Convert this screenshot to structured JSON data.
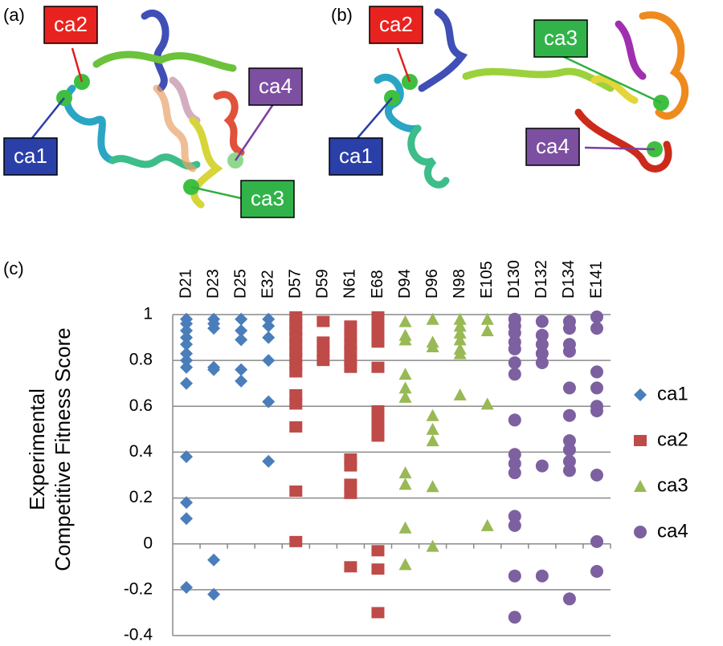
{
  "structures": [
    {
      "label": "(a)",
      "sites": [
        "ca2",
        "ca4",
        "ca1",
        "ca3"
      ]
    },
    {
      "label": "(b)",
      "sites": [
        "ca2",
        "ca3",
        "ca1",
        "ca4"
      ]
    }
  ],
  "chart_data": {
    "type": "strip",
    "label": "(c)",
    "y_label": [
      "Experimental",
      "Competitive Fitness Score"
    ],
    "categories": [
      "D21",
      "D23",
      "D25",
      "E32",
      "D57",
      "D59",
      "N61",
      "E68",
      "D94",
      "D96",
      "N98",
      "E105",
      "D130",
      "D132",
      "D134",
      "E141"
    ],
    "ylim": [
      -0.4,
      1
    ],
    "yticks": [
      -0.4,
      -0.2,
      0,
      0.2,
      0.4,
      0.6,
      0.8,
      1
    ],
    "grid": true,
    "legend": "right",
    "series": [
      {
        "name": "ca1",
        "color": "#4a7ebb",
        "marker": "diamond",
        "values": [
          [
            0.98,
            0.96,
            0.93,
            0.9,
            0.87,
            0.83,
            0.8,
            0.77,
            0.7,
            0.38,
            0.18,
            0.11,
            -0.19
          ],
          [
            0.98,
            0.96,
            0.94,
            0.77,
            0.76,
            -0.07,
            -0.22
          ],
          [
            0.98,
            0.93,
            0.89,
            0.76,
            0.71
          ],
          [
            0.98,
            0.95,
            0.9,
            0.8,
            0.62,
            0.36
          ],
          null,
          null,
          null,
          null,
          null,
          null,
          null,
          null,
          null,
          null,
          null,
          null
        ]
      },
      {
        "name": "ca2",
        "color": "#be4b48",
        "marker": "square",
        "values": [
          null,
          null,
          null,
          null,
          [
            0.99,
            0.96,
            0.93,
            0.9,
            0.87,
            0.84,
            0.81,
            0.78,
            0.75,
            0.65,
            0.61,
            0.51,
            0.23,
            0.01
          ],
          [
            0.97,
            0.88,
            0.84,
            0.8
          ],
          [
            0.95,
            0.91,
            0.87,
            0.84,
            0.8,
            0.77,
            0.37,
            0.34,
            0.26,
            0.22,
            -0.1
          ],
          [
            0.99,
            0.95,
            0.91,
            0.88,
            0.77,
            0.58,
            0.54,
            0.5,
            0.47,
            -0.03,
            -0.11,
            -0.3
          ],
          null,
          null,
          null,
          null,
          null,
          null,
          null,
          null
        ]
      },
      {
        "name": "ca3",
        "color": "#98b954",
        "marker": "triangle",
        "values": [
          null,
          null,
          null,
          null,
          null,
          null,
          null,
          null,
          [
            0.97,
            0.91,
            0.89,
            0.74,
            0.68,
            0.64,
            0.31,
            0.26,
            0.07,
            -0.09
          ],
          [
            0.98,
            0.88,
            0.86,
            0.56,
            0.5,
            0.45,
            0.25,
            -0.01
          ],
          [
            0.98,
            0.95,
            0.92,
            0.89,
            0.85,
            0.83,
            0.65
          ],
          [
            0.98,
            0.93,
            0.61,
            0.08
          ],
          null,
          null,
          null,
          null
        ]
      },
      {
        "name": "ca4",
        "color": "#7d60a0",
        "marker": "circle",
        "values": [
          null,
          null,
          null,
          null,
          null,
          null,
          null,
          null,
          null,
          null,
          null,
          null,
          [
            0.98,
            0.95,
            0.92,
            0.88,
            0.85,
            0.79,
            0.74,
            0.54,
            0.39,
            0.35,
            0.31,
            0.12,
            0.08,
            -0.14,
            -0.32
          ],
          [
            0.97,
            0.91,
            0.87,
            0.83,
            0.79,
            0.34,
            -0.14
          ],
          [
            0.97,
            0.94,
            0.87,
            0.84,
            0.68,
            0.56,
            0.45,
            0.41,
            0.36,
            0.32,
            -0.24
          ],
          [
            0.99,
            0.94,
            0.75,
            0.68,
            0.6,
            0.58,
            0.3,
            0.01,
            -0.12
          ]
        ]
      }
    ]
  }
}
